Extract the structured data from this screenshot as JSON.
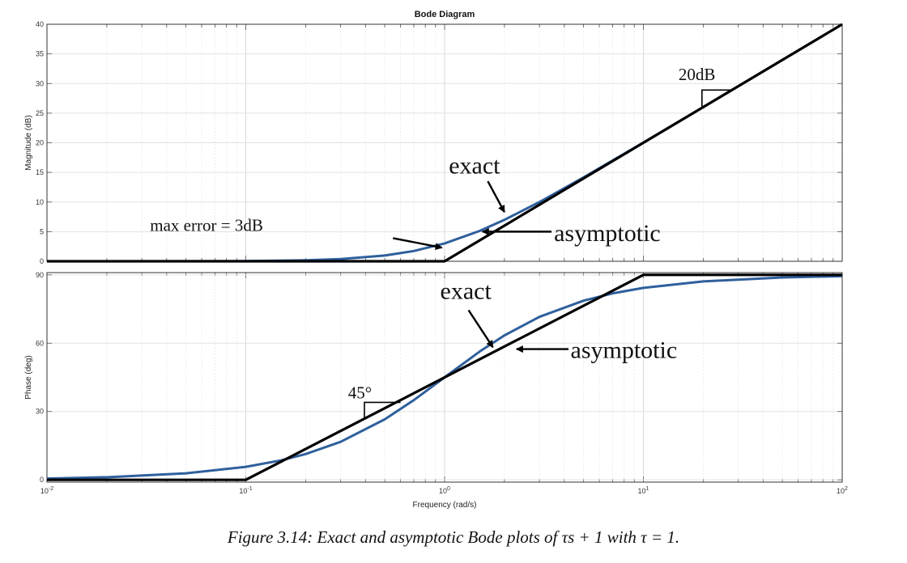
{
  "chart_data": [
    {
      "type": "line",
      "panel": "magnitude",
      "title": "Bode Diagram",
      "xlabel": "",
      "ylabel": "Magnitude (dB)",
      "xscale": "log",
      "xlim": [
        0.01,
        100
      ],
      "ylim": [
        0,
        40
      ],
      "yticks": [
        0,
        5,
        10,
        15,
        20,
        25,
        30,
        35,
        40
      ],
      "grid": true,
      "series": [
        {
          "name": "exact",
          "color": "#2f5f9c",
          "x": [
            0.01,
            0.02,
            0.05,
            0.1,
            0.2,
            0.3,
            0.5,
            0.7,
            1,
            1.5,
            2,
            3,
            5,
            7,
            10,
            20,
            50,
            100
          ],
          "y": [
            0.0004,
            0.0017,
            0.011,
            0.043,
            0.17,
            0.37,
            0.97,
            1.73,
            3.01,
            5.12,
            6.99,
            10.0,
            14.15,
            17.0,
            20.04,
            26.03,
            33.98,
            40.0
          ]
        },
        {
          "name": "asymptotic",
          "color": "#000000",
          "x": [
            0.01,
            1,
            100
          ],
          "y": [
            0,
            0,
            40
          ]
        }
      ],
      "annotations": [
        {
          "text": "exact"
        },
        {
          "text": "asymptotic"
        },
        {
          "text": "max error = 3dB"
        },
        {
          "text": "20dB"
        }
      ]
    },
    {
      "type": "line",
      "panel": "phase",
      "title": "",
      "xlabel": "Frequency  (rad/s)",
      "ylabel": "Phase (deg)",
      "xscale": "log",
      "xlim": [
        0.01,
        100
      ],
      "ylim": [
        -1,
        91
      ],
      "yticks": [
        0,
        30,
        60,
        90
      ],
      "xticks": [
        0.01,
        0.1,
        1,
        10,
        100
      ],
      "grid": true,
      "series": [
        {
          "name": "exact",
          "color": "#2f5f9c",
          "x": [
            0.01,
            0.02,
            0.05,
            0.1,
            0.15,
            0.2,
            0.3,
            0.5,
            0.7,
            1,
            1.5,
            2,
            3,
            5,
            7,
            10,
            20,
            50,
            100
          ],
          "y": [
            0.57,
            1.15,
            2.86,
            5.71,
            8.53,
            11.31,
            16.7,
            26.57,
            34.99,
            45,
            56.31,
            63.43,
            71.57,
            78.69,
            81.87,
            84.29,
            87.14,
            88.85,
            89.43
          ]
        },
        {
          "name": "asymptotic",
          "color": "#000000",
          "x": [
            0.01,
            0.1,
            10,
            100
          ],
          "y": [
            0,
            0,
            90,
            90
          ]
        }
      ],
      "annotations": [
        {
          "text": "exact"
        },
        {
          "text": "asymptotic"
        },
        {
          "text": "45°"
        }
      ]
    }
  ],
  "tick_labels": {
    "x": [
      {
        "base": "10",
        "exp": "-2"
      },
      {
        "base": "10",
        "exp": "-1"
      },
      {
        "base": "10",
        "exp": "0"
      },
      {
        "base": "10",
        "exp": "1"
      },
      {
        "base": "10",
        "exp": "2"
      }
    ]
  },
  "caption": "Figure 3.14: Exact and asymptotic Bode plots of τs + 1 with τ = 1."
}
